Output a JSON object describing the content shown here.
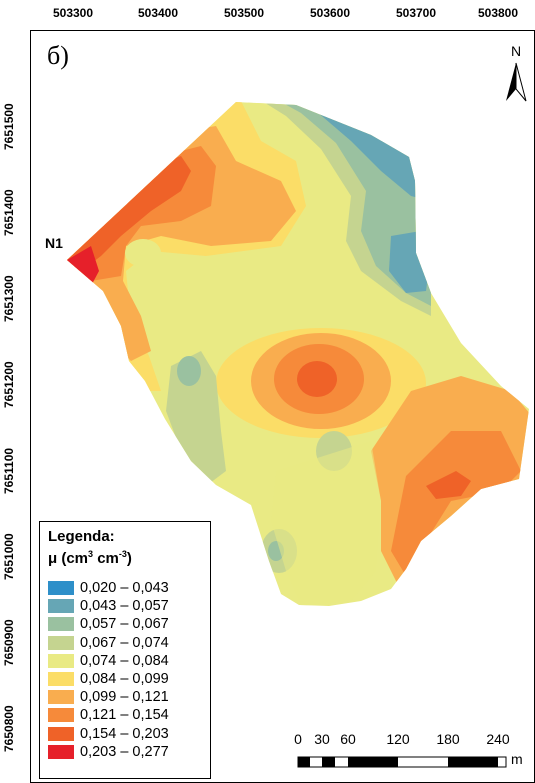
{
  "axes": {
    "x_ticks": [
      "503300",
      "503400",
      "503500",
      "503600",
      "503700",
      "503800"
    ],
    "y_ticks": [
      "7651500",
      "7651400",
      "7651300",
      "7651200",
      "7651100",
      "7651000",
      "7650900",
      "7650800"
    ]
  },
  "panel_label": "б)",
  "north_arrow": {
    "letter": "N",
    "icon": "north-arrow-icon"
  },
  "point_label": "N1",
  "legend": {
    "title": "Legenda:",
    "units": "μ (cm³ cm⁻³)",
    "units_base": "μ (cm",
    "units_sup1": "3",
    "units_mid": " cm",
    "units_sup2": "-3",
    "units_end": ")",
    "classes": [
      {
        "label": "0,020 – 0,043",
        "color": "#2e8fc9"
      },
      {
        "label": "0,043 – 0,057",
        "color": "#66a6b5"
      },
      {
        "label": "0,057 – 0,067",
        "color": "#9ac1a0"
      },
      {
        "label": "0,067 – 0,074",
        "color": "#c5d490"
      },
      {
        "label": "0,074 – 0,084",
        "color": "#e9ea84"
      },
      {
        "label": "0,084 – 0,099",
        "color": "#fbdd67"
      },
      {
        "label": "0,099 – 0,121",
        "color": "#f9ad4f"
      },
      {
        "label": "0,121 – 0,154",
        "color": "#f68a3a"
      },
      {
        "label": "0,154 – 0,203",
        "color": "#ef6228"
      },
      {
        "label": "0,203 – 0,277",
        "color": "#e6202a"
      }
    ]
  },
  "scale_bar": {
    "labels": [
      "0",
      "30",
      "60",
      "120",
      "180",
      "240"
    ],
    "unit": "m"
  }
}
